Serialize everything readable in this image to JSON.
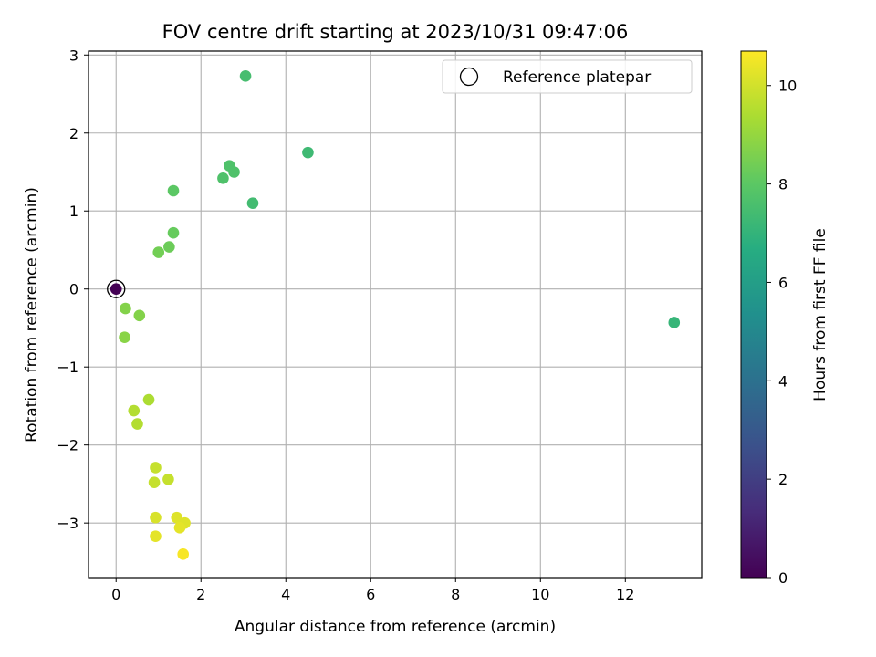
{
  "chart_data": {
    "type": "scatter",
    "title": "FOV centre drift starting at 2023/10/31 09:47:06",
    "xlabel": "Angular distance from reference (arcmin)",
    "ylabel": "Rotation from reference (arcmin)",
    "xlim": [
      -0.65,
      13.8
    ],
    "ylim": [
      -3.7,
      3.05
    ],
    "xticks": [
      0,
      2,
      4,
      6,
      8,
      10,
      12
    ],
    "yticks": [
      -3,
      -2,
      -1,
      0,
      1,
      2,
      3
    ],
    "x_tick_labels": [
      "0",
      "2",
      "4",
      "6",
      "8",
      "10",
      "12"
    ],
    "y_tick_labels": [
      "−3",
      "−2",
      "−1",
      "0",
      "1",
      "2",
      "3"
    ],
    "grid": true,
    "legend": {
      "position": "top-right",
      "label": "Reference platepar"
    },
    "colorbar": {
      "label": "Hours from first FF file",
      "colormap": "viridis",
      "range": [
        0,
        10.7
      ],
      "ticks": [
        0,
        2,
        4,
        6,
        8,
        10
      ],
      "tick_labels": [
        "0",
        "2",
        "4",
        "6",
        "8",
        "10"
      ]
    },
    "reference_point": {
      "x": 0,
      "y": 0
    },
    "points": [
      {
        "x": 0.0,
        "y": 0.0,
        "c": 0.0
      },
      {
        "x": 13.15,
        "y": -0.43,
        "c": 7.1
      },
      {
        "x": 4.52,
        "y": 1.75,
        "c": 7.3
      },
      {
        "x": 3.05,
        "y": 2.73,
        "c": 7.5
      },
      {
        "x": 3.22,
        "y": 1.1,
        "c": 7.4
      },
      {
        "x": 2.52,
        "y": 1.42,
        "c": 7.7
      },
      {
        "x": 2.67,
        "y": 1.58,
        "c": 7.7
      },
      {
        "x": 2.78,
        "y": 1.5,
        "c": 7.7
      },
      {
        "x": 1.35,
        "y": 1.26,
        "c": 8.0
      },
      {
        "x": 1.35,
        "y": 0.72,
        "c": 8.2
      },
      {
        "x": 1.25,
        "y": 0.54,
        "c": 8.3
      },
      {
        "x": 1.0,
        "y": 0.47,
        "c": 8.4
      },
      {
        "x": 0.22,
        "y": -0.25,
        "c": 8.7
      },
      {
        "x": 0.55,
        "y": -0.34,
        "c": 8.7
      },
      {
        "x": 0.2,
        "y": -0.62,
        "c": 8.8
      },
      {
        "x": 0.77,
        "y": -1.42,
        "c": 9.4
      },
      {
        "x": 0.42,
        "y": -1.56,
        "c": 9.5
      },
      {
        "x": 0.5,
        "y": -1.73,
        "c": 9.5
      },
      {
        "x": 0.93,
        "y": -2.29,
        "c": 9.8
      },
      {
        "x": 0.9,
        "y": -2.48,
        "c": 9.8
      },
      {
        "x": 1.23,
        "y": -2.44,
        "c": 9.8
      },
      {
        "x": 0.93,
        "y": -2.93,
        "c": 10.1
      },
      {
        "x": 1.43,
        "y": -2.93,
        "c": 10.2
      },
      {
        "x": 1.62,
        "y": -3.0,
        "c": 10.2
      },
      {
        "x": 1.5,
        "y": -3.06,
        "c": 10.3
      },
      {
        "x": 0.93,
        "y": -3.17,
        "c": 10.3
      },
      {
        "x": 1.58,
        "y": -3.4,
        "c": 10.6
      }
    ]
  }
}
